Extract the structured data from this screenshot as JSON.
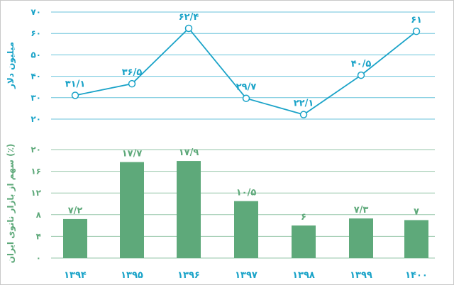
{
  "chart_data": [
    {
      "type": "line",
      "ylabel": "میلیون دلار",
      "ylim": [
        20,
        70
      ],
      "yticks": [
        "۲۰",
        "۳۰",
        "۴۰",
        "۵۰",
        "۶۰",
        "۷۰"
      ],
      "grid": true,
      "color": "#1aa3c8",
      "series": [
        {
          "values": [
            31.1,
            36.5,
            62.4,
            29.7,
            22.1,
            40.5,
            61
          ],
          "labels": [
            "۳۱/۱",
            "۳۶/۵",
            "۶۲/۴",
            "۲۹/۷",
            "۲۲/۱",
            "۴۰/۵",
            "۶۱"
          ]
        }
      ]
    },
    {
      "type": "bar",
      "ylabel": "سهم از بازار نانوی ایران (٪)",
      "ylim": [
        0,
        20
      ],
      "yticks": [
        "۰",
        "۴",
        "۸",
        "۱۲",
        "۱۶",
        "۲۰"
      ],
      "grid": true,
      "color": "#5ea97a",
      "categories": [
        "۱۳۹۴",
        "۱۳۹۵",
        "۱۳۹۶",
        "۱۳۹۷",
        "۱۳۹۸",
        "۱۳۹۹",
        "۱۴۰۰"
      ],
      "series": [
        {
          "values": [
            7.2,
            17.7,
            17.9,
            10.5,
            6,
            7.3,
            7
          ],
          "labels": [
            "۷/۲",
            "۱۷/۷",
            "۱۷/۹",
            "۱۰/۵",
            "۶",
            "۷/۳",
            "۷"
          ]
        }
      ]
    }
  ]
}
